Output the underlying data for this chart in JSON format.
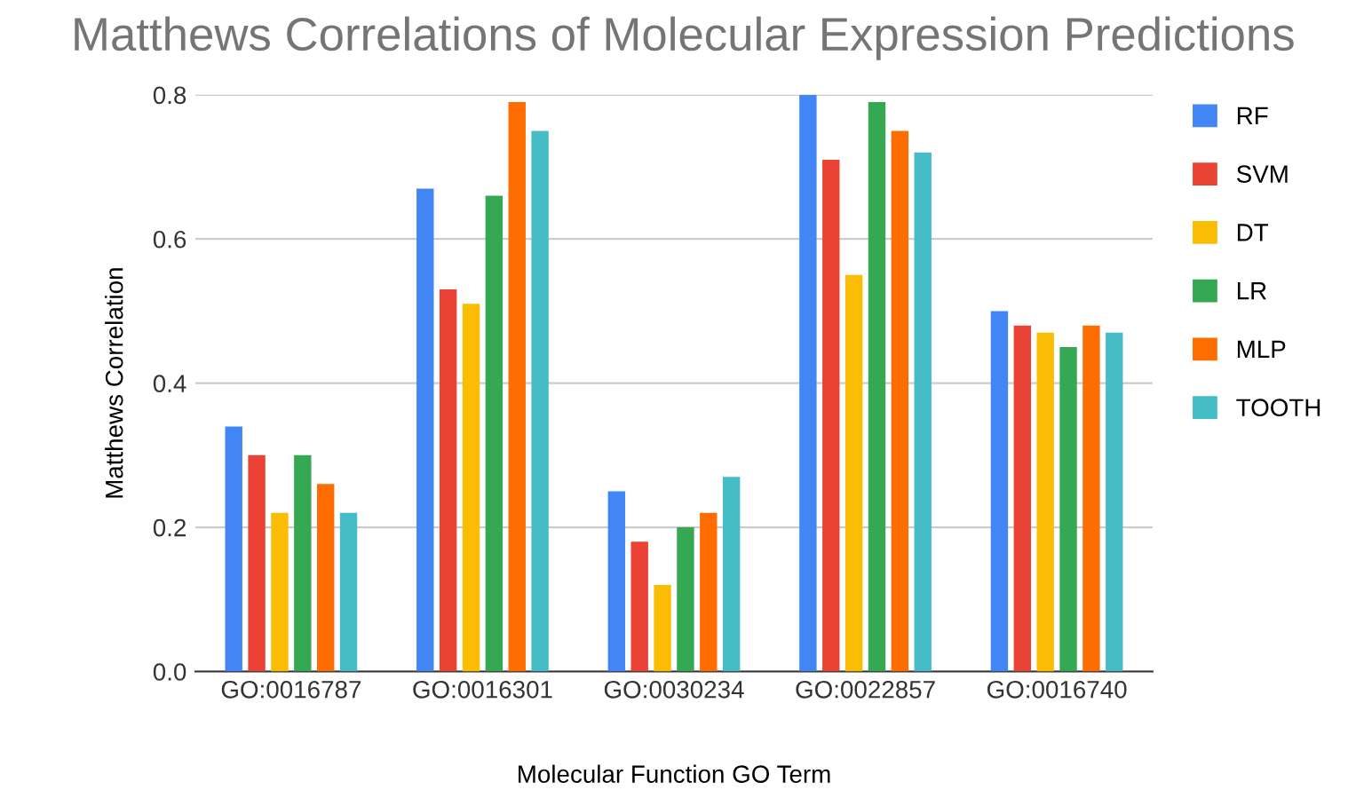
{
  "chart_data": {
    "type": "bar",
    "title": "Matthews Correlations of Molecular Expression Predictions",
    "xlabel": "Molecular Function GO Term",
    "ylabel": "Matthews Correlation",
    "categories": [
      "GO:0016787",
      "GO:0016301",
      "GO:0030234",
      "GO:0022857",
      "GO:0016740"
    ],
    "series": [
      {
        "name": "RF",
        "color": "#4285f4",
        "values": [
          0.34,
          0.67,
          0.25,
          0.8,
          0.5
        ]
      },
      {
        "name": "SVM",
        "color": "#ea4335",
        "values": [
          0.3,
          0.53,
          0.18,
          0.71,
          0.48
        ]
      },
      {
        "name": "DT",
        "color": "#fbbc04",
        "values": [
          0.22,
          0.51,
          0.12,
          0.55,
          0.47
        ]
      },
      {
        "name": "LR",
        "color": "#34a853",
        "values": [
          0.3,
          0.66,
          0.2,
          0.79,
          0.45
        ]
      },
      {
        "name": "MLP",
        "color": "#ff6d01",
        "values": [
          0.26,
          0.79,
          0.22,
          0.75,
          0.48
        ]
      },
      {
        "name": "TOOTH",
        "color": "#46bdc6",
        "values": [
          0.22,
          0.75,
          0.27,
          0.72,
          0.47
        ]
      }
    ],
    "ylim": [
      0,
      0.8
    ],
    "yticks": [
      {
        "value": 0,
        "label": "0.0"
      },
      {
        "value": 0.2,
        "label": "0.2"
      },
      {
        "value": 0.4,
        "label": "0.4"
      },
      {
        "value": 0.6,
        "label": "0.6"
      },
      {
        "value": 0.8,
        "label": "0.8"
      }
    ],
    "grid": "y",
    "legend": "right"
  }
}
